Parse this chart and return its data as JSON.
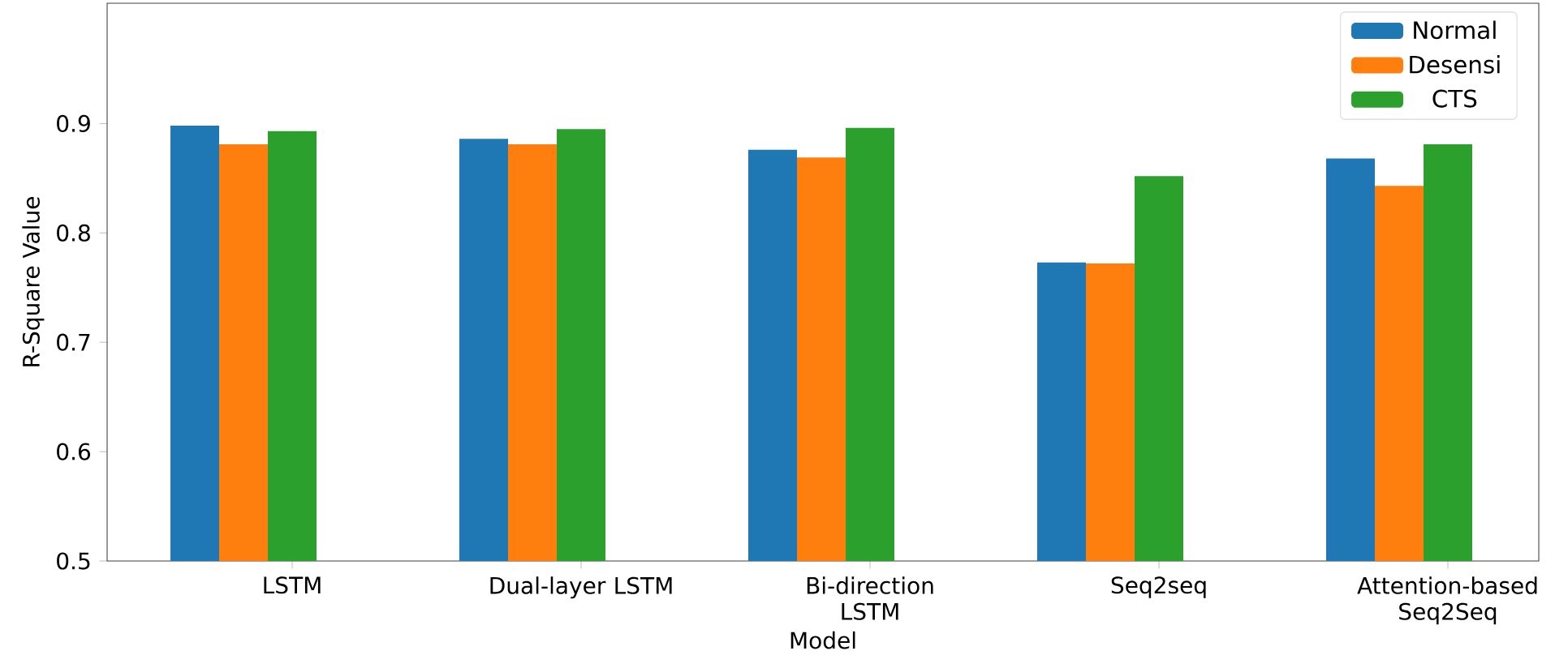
{
  "chart_data": {
    "type": "bar",
    "xlabel": "Model",
    "ylabel": "R-Square Value",
    "categories": [
      "LSTM",
      "Dual-layer LSTM",
      "Bi-direction LSTM",
      "Seq2seq",
      "Attention-based Seq2Seq"
    ],
    "series": [
      {
        "name": "Normal",
        "color": "#1f77b4",
        "values": [
          0.898,
          0.886,
          0.876,
          0.773,
          0.868
        ]
      },
      {
        "name": "Desensi",
        "color": "#ff7f0e",
        "values": [
          0.881,
          0.881,
          0.869,
          0.772,
          0.843
        ]
      },
      {
        "name": "CTS",
        "color": "#2ca02c",
        "values": [
          0.893,
          0.895,
          0.896,
          0.852,
          0.881
        ]
      }
    ],
    "ylim": [
      0.5,
      1.01
    ],
    "yticks": [
      0.5,
      0.6,
      0.7,
      0.8,
      0.9
    ],
    "grid": false,
    "legend": "top right"
  }
}
